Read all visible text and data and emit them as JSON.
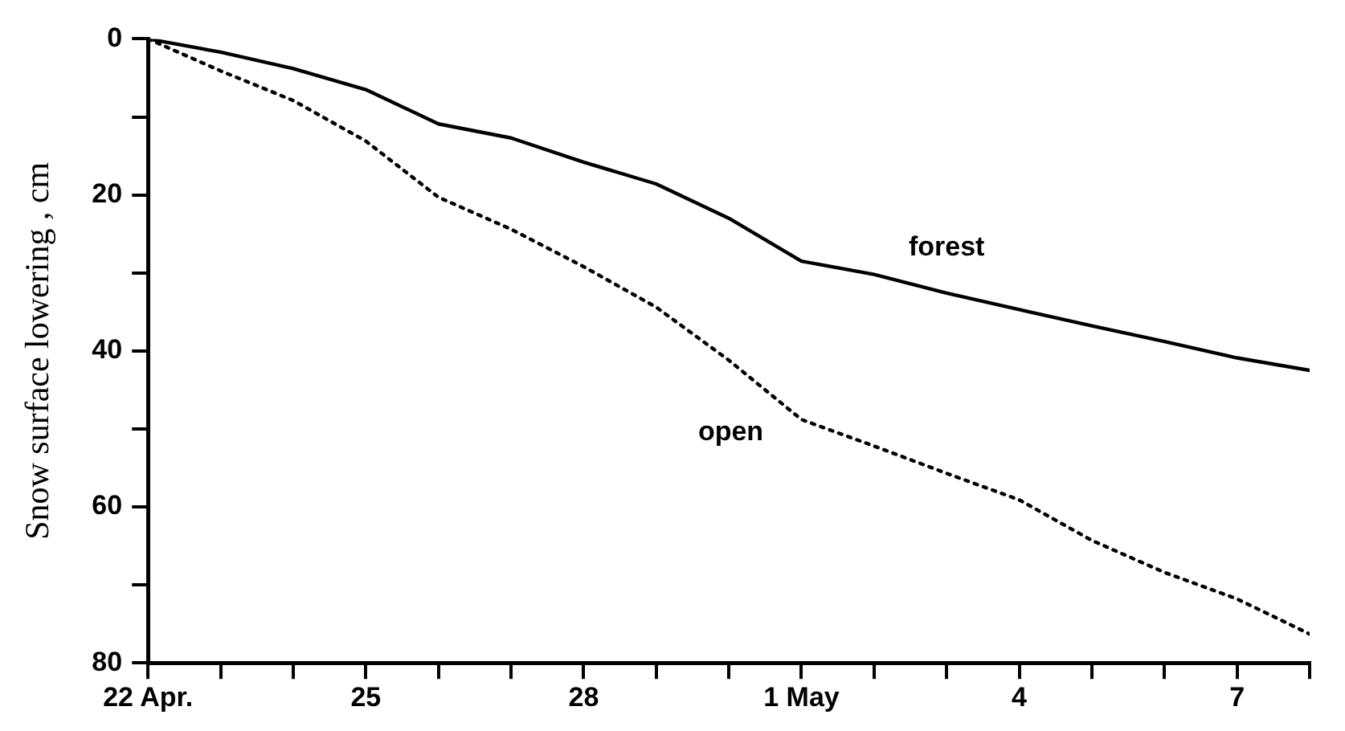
{
  "chart_data": {
    "type": "line",
    "ylabel": "Snow surface lowering , cm",
    "x": [
      "--04-22",
      "--04-23",
      "--04-24",
      "--04-25",
      "--04-26",
      "--04-27",
      "--04-28",
      "--04-29",
      "--04-30",
      "--05-01",
      "--05-02",
      "--05-03",
      "--05-04",
      "--05-05",
      "--05-06",
      "--05-07",
      "--05-08"
    ],
    "series": [
      {
        "name": "forest",
        "color": "#000000",
        "line_style": "solid",
        "values": [
          0,
          1.7,
          3.8,
          6.5,
          10.9,
          12.7,
          15.8,
          18.6,
          23.0,
          28.5,
          30.2,
          32.6,
          34.7,
          36.8,
          38.8,
          40.9,
          42.5
        ]
      },
      {
        "name": "open",
        "color": "#000000",
        "line_style": "dotted",
        "values": [
          0,
          4.1,
          7.9,
          13.1,
          20.3,
          24.4,
          29.2,
          34.4,
          41.2,
          48.8,
          52.2,
          55.7,
          59.1,
          64.3,
          68.4,
          71.8,
          76.3
        ]
      }
    ],
    "xlim": [
      "--04-22",
      "--05-08"
    ],
    "xticks": [
      {
        "value": "--04-22",
        "label": "22 Apr."
      },
      {
        "value": "--04-23",
        "label": null
      },
      {
        "value": "--04-24",
        "label": null
      },
      {
        "value": "--04-25",
        "label": "25"
      },
      {
        "value": "--04-26",
        "label": null
      },
      {
        "value": "--04-27",
        "label": null
      },
      {
        "value": "--04-28",
        "label": "28"
      },
      {
        "value": "--04-29",
        "label": null
      },
      {
        "value": "--04-30",
        "label": null
      },
      {
        "value": "--05-01",
        "label": "1 May"
      },
      {
        "value": "--05-02",
        "label": null
      },
      {
        "value": "--05-03",
        "label": null
      },
      {
        "value": "--05-04",
        "label": "4"
      },
      {
        "value": "--05-05",
        "label": null
      },
      {
        "value": "--05-06",
        "label": null
      },
      {
        "value": "--05-07",
        "label": "7"
      },
      {
        "value": "--05-08",
        "label": null
      }
    ],
    "ylim": [
      80,
      0
    ],
    "yticks": [
      0,
      {
        "value": 10,
        "label": null
      },
      20,
      {
        "value": 30,
        "label": null
      },
      40,
      {
        "value": 50,
        "label": null
      },
      60,
      {
        "value": 70,
        "label": null
      },
      80
    ],
    "grid": false,
    "legend": false,
    "marker": "none"
  }
}
